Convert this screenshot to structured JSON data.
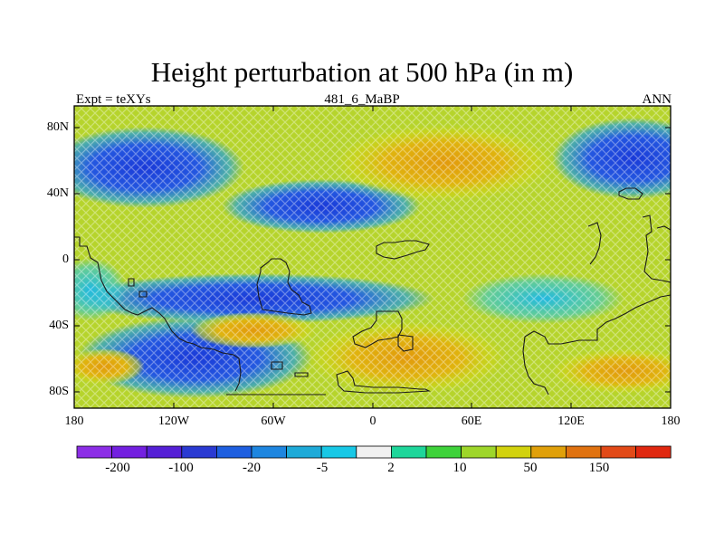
{
  "title": "Height perturbation at 500 hPa (in m)",
  "subtitle_left": "Expt = teXYs",
  "subtitle_center": "481_6_MaBP",
  "subtitle_right": "ANN",
  "y_ticks": [
    "80N",
    "40N",
    "0",
    "40S",
    "80S"
  ],
  "x_ticks": [
    "180",
    "120W",
    "60W",
    "0",
    "60E",
    "120E",
    "180"
  ],
  "colorbar": {
    "colors": [
      "#8c2ee6",
      "#7320e0",
      "#5520d6",
      "#2a3ad2",
      "#1e5fe0",
      "#1e86e0",
      "#1eaad8",
      "#18c8e6",
      "#f0f0f0",
      "#1ed69a",
      "#3ed23a",
      "#9ed62a",
      "#d2d20e",
      "#e0a00a",
      "#e07210",
      "#e24a18",
      "#e02810"
    ],
    "labels": [
      "-200",
      "-100",
      "-20",
      "-5",
      "2",
      "10",
      "50",
      "150"
    ]
  }
}
